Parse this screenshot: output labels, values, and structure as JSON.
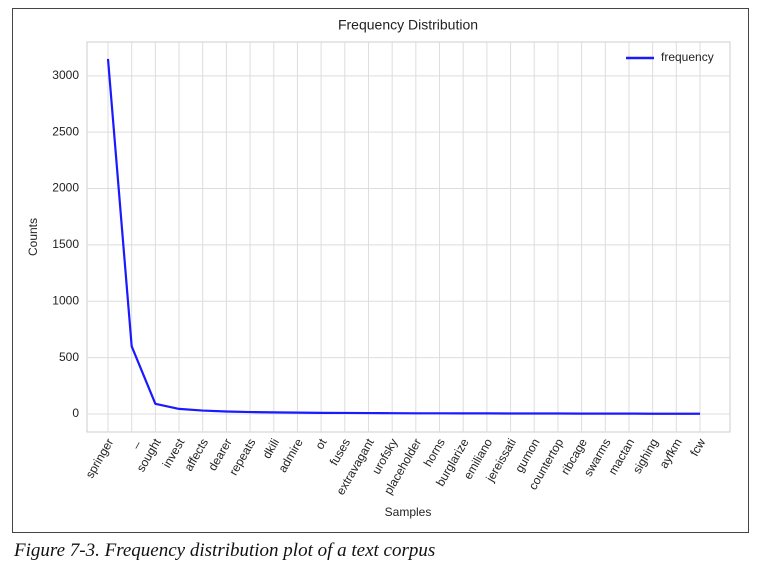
{
  "chart_data": {
    "type": "line",
    "title": "Frequency Distribution",
    "x_label": "Samples",
    "y_label": "Counts",
    "categories": [
      "springer",
      "_",
      "sought",
      "invest",
      "affects",
      "dearer",
      "repeats",
      "dkili",
      "admire",
      "ot",
      "fuses",
      "extravagant",
      "urofsky",
      "placeholder",
      "horns",
      "burglarize",
      "emiliano",
      "jereissati",
      "gumon",
      "countertop",
      "ribcage",
      "swarms",
      "mactan",
      "sighing",
      "ayfkm",
      "fcw"
    ],
    "series": [
      {
        "name": "frequency",
        "color": "#1a1aff",
        "values": [
          3150,
          600,
          90,
          45,
          30,
          22,
          17,
          14,
          12,
          10,
          9,
          8,
          7,
          6,
          6,
          5,
          5,
          4,
          4,
          4,
          3,
          3,
          3,
          2,
          2,
          2
        ]
      }
    ],
    "ylim": [
      -160,
      3300
    ],
    "yticks": [
      0,
      500,
      1000,
      1500,
      2000,
      2500,
      3000
    ],
    "grid": true,
    "legend": "upper right"
  },
  "caption": "Figure 7-3. Frequency distribution plot of a text corpus"
}
